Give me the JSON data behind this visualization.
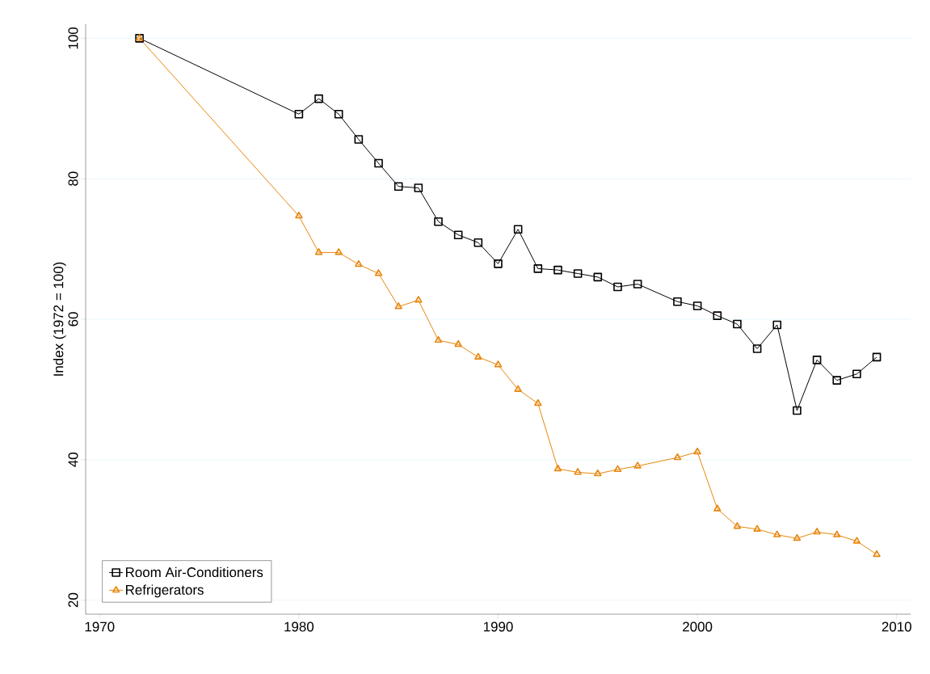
{
  "chart_data": {
    "type": "line",
    "ylabel": "Index (1972 = 100)",
    "x": [
      1972,
      1980,
      1981,
      1982,
      1983,
      1984,
      1985,
      1986,
      1987,
      1988,
      1989,
      1990,
      1991,
      1992,
      1993,
      1994,
      1995,
      1996,
      1997,
      1999,
      2000,
      2001,
      2002,
      2003,
      2004,
      2005,
      2006,
      2007,
      2008,
      2009
    ],
    "series": [
      {
        "name": "Room Air-Conditioners",
        "color": "#000000",
        "marker": "square",
        "values": [
          100,
          89.2,
          91.4,
          89.2,
          85.6,
          82.2,
          78.9,
          78.7,
          73.9,
          72.0,
          70.9,
          67.9,
          72.8,
          67.2,
          67.0,
          66.5,
          66.0,
          64.6,
          65.0,
          62.5,
          61.9,
          60.5,
          59.3,
          55.8,
          59.2,
          47.0,
          54.2,
          51.3,
          52.2,
          54.6
        ]
      },
      {
        "name": "Refrigerators",
        "color": "#e8860c",
        "marker": "triangle",
        "values": [
          100,
          74.7,
          69.5,
          69.5,
          67.8,
          66.5,
          61.8,
          62.7,
          57.0,
          56.4,
          54.6,
          53.5,
          50.0,
          48.0,
          38.7,
          38.2,
          38.0,
          38.6,
          39.1,
          40.3,
          41.1,
          33.0,
          30.5,
          30.1,
          29.3,
          28.8,
          29.7,
          29.3,
          28.4,
          26.5
        ]
      }
    ],
    "xlim": [
      1969.3,
      2010.7
    ],
    "ylim": [
      18,
      102
    ],
    "xticks": [
      1970,
      1980,
      1990,
      2000,
      2010
    ],
    "yticks": [
      20,
      40,
      60,
      80,
      100
    ],
    "grid": "y",
    "legend": "bottom left",
    "line_style": "solid"
  }
}
